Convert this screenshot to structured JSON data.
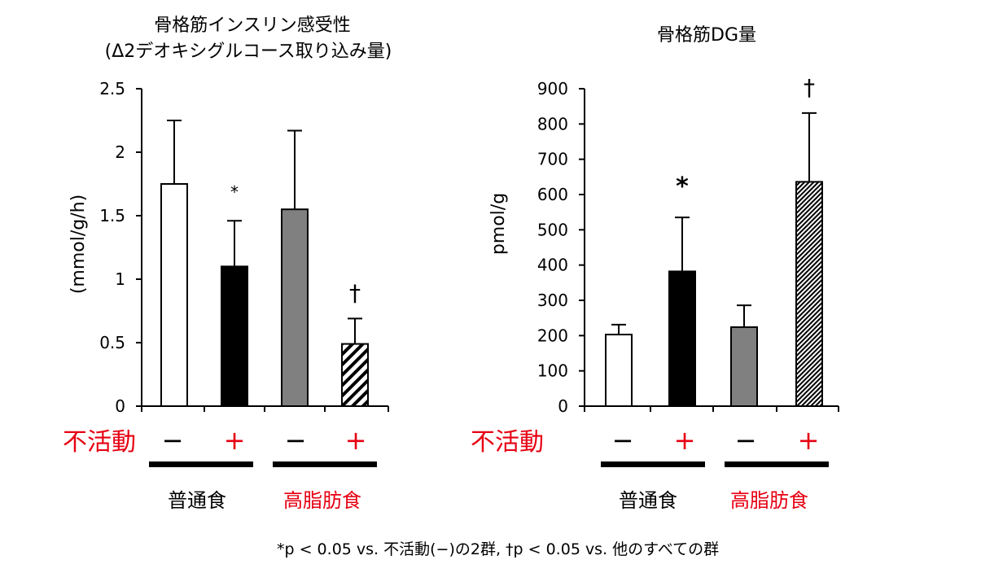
{
  "chart_data": [
    {
      "type": "bar",
      "title": "骨格筋インスリン感受性",
      "subtitle": "(Δ2デオキシグルコース取り込み量)",
      "xlabel": "",
      "ylabel": "(mmol/g/h)",
      "ylim": [
        0,
        2.5
      ],
      "yticks": [
        "0",
        "0.5",
        "1",
        "1.5",
        "2",
        "2.5"
      ],
      "categories": [
        "普通食 不活動−",
        "普通食 不活動+",
        "高脂肪食 不活動−",
        "高脂肪食 不活動+"
      ],
      "values": [
        1.75,
        1.1,
        1.55,
        0.49
      ],
      "errors": [
        0.5,
        0.36,
        0.62,
        0.2
      ],
      "fills": [
        "white",
        "black",
        "gray",
        "hatch"
      ],
      "annotations": [
        "",
        "*",
        "",
        "†"
      ]
    },
    {
      "type": "bar",
      "title": "骨格筋DG量",
      "xlabel": "",
      "ylabel": "pmol/g",
      "ylim": [
        0,
        900
      ],
      "yticks": [
        "0",
        "100",
        "200",
        "300",
        "400",
        "500",
        "600",
        "700",
        "800",
        "900"
      ],
      "categories": [
        "普通食 不活動−",
        "普通食 不活動+",
        "高脂肪食 不活動−",
        "高脂肪食 不活動+"
      ],
      "values": [
        203,
        382,
        224,
        636
      ],
      "errors": [
        28,
        153,
        62,
        195
      ],
      "fills": [
        "white",
        "black",
        "gray",
        "hatch-fine"
      ],
      "annotations": [
        "",
        "*",
        "",
        "†"
      ]
    }
  ],
  "labels": {
    "inactivity": "不活動",
    "minus": "−",
    "plus": "+",
    "normal_diet": "普通食",
    "high_fat_diet": "高脂肪食"
  },
  "footnote": "*p < 0.05 vs. 不活動(−)の2群, †p < 0.05 vs. 他のすべての群",
  "colors": {
    "red": "#e60012",
    "gray": "#808080",
    "black": "#000000"
  }
}
